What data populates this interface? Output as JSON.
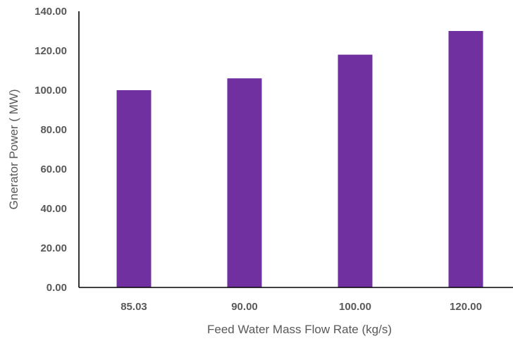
{
  "chart_data": {
    "type": "bar",
    "categories": [
      "85.03",
      "90.00",
      "100.00",
      "120.00"
    ],
    "values": [
      100,
      106,
      118,
      130
    ],
    "xlabel": "Feed Water Mass Flow Rate (kg/s)",
    "ylabel": "Gnerator Power ( MW)",
    "ylim": [
      0,
      140
    ],
    "yticks": [
      "0.00",
      "20.00",
      "40.00",
      "60.00",
      "80.00",
      "100.00",
      "120.00",
      "140.00"
    ],
    "grid": false,
    "legend": "none",
    "bar_color": "#7030A0"
  }
}
